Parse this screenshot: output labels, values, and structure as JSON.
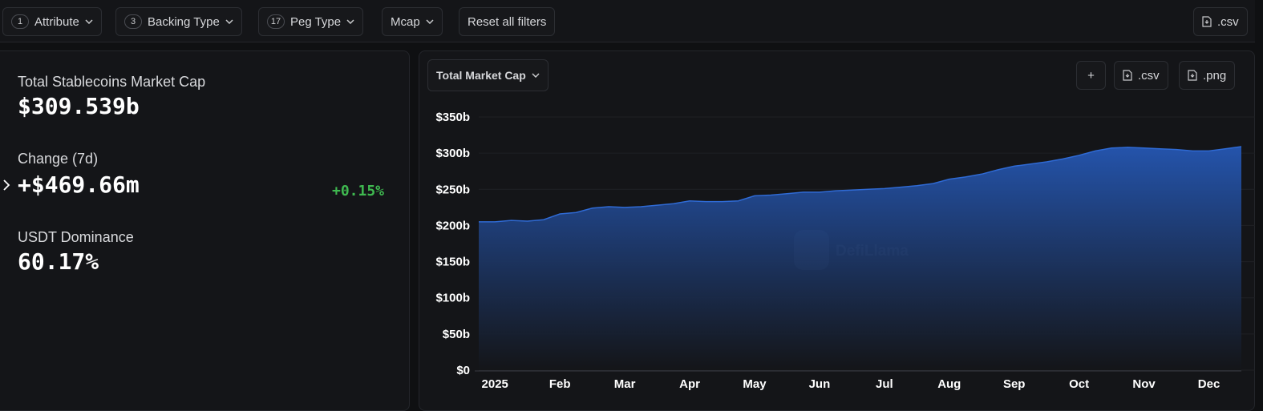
{
  "filters": [
    {
      "count": 1,
      "label": "Attribute"
    },
    {
      "count": 3,
      "label": "Backing Type"
    },
    {
      "count": 17,
      "label": "Peg Type"
    }
  ],
  "mcap_filter": "Mcap",
  "reset": "Reset all filters",
  "download_csv": ".csv",
  "stats": {
    "market_cap_label": "Total Stablecoins Market Cap",
    "market_cap": "$309.539b",
    "change_label": "Change (7d)",
    "change": "+$469.66m",
    "change_pct": "+0.15%",
    "dominance_label": "USDT Dominance",
    "dominance": "60.17%"
  },
  "chart_controls": {
    "metric": "Total Market Cap",
    "add": "+",
    "csv": ".csv",
    "png": ".png"
  },
  "watermark": "DefiLlama",
  "chart_data": {
    "type": "area",
    "color": "#2f6ad4",
    "categories": [
      null,
      "2025",
      null,
      null,
      null,
      "Feb",
      null,
      null,
      null,
      "Mar",
      null,
      null,
      null,
      "Apr",
      null,
      null,
      null,
      "May",
      null,
      null,
      null,
      "Jun",
      null,
      null,
      null,
      "Jul",
      null,
      null,
      null,
      "Aug",
      null,
      null,
      null,
      "Sep",
      null,
      null,
      null,
      "Oct",
      null,
      null,
      null,
      "Nov",
      null,
      null,
      null,
      "Dec",
      null,
      null
    ],
    "values": [
      205,
      205,
      207,
      206,
      208,
      216,
      218,
      224,
      226,
      225,
      226,
      228,
      230,
      234,
      233,
      233,
      234,
      241,
      242,
      244,
      246,
      246,
      248,
      249,
      250,
      251,
      253,
      255,
      258,
      264,
      267,
      271,
      277,
      282,
      285,
      288,
      292,
      297,
      303,
      307,
      308,
      307,
      306,
      305,
      303,
      303,
      306,
      309
    ],
    "ylim": [
      0,
      350
    ],
    "yticks": [
      {
        "value": 0,
        "label": "$0"
      },
      {
        "value": 50,
        "label": "$50b"
      },
      {
        "value": 100,
        "label": "$100b"
      },
      {
        "value": 150,
        "label": "$150b"
      },
      {
        "value": 200,
        "label": "$200b"
      },
      {
        "value": 250,
        "label": "$250b"
      },
      {
        "value": 300,
        "label": "$300b"
      },
      {
        "value": 350,
        "label": "$350b"
      }
    ],
    "grid": true
  }
}
